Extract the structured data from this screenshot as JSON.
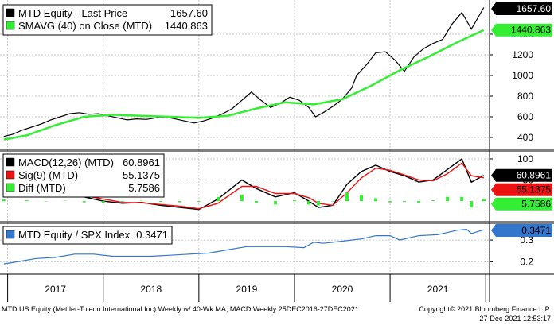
{
  "chart_data": [
    {
      "type": "line",
      "panel": "price",
      "ylim": [
        300,
        1700
      ],
      "yticks": [
        400,
        600,
        800,
        1000,
        1200,
        1400
      ],
      "series": [
        {
          "name": "MTD Equity - Last Price",
          "last": "1657.60",
          "color": "#000000",
          "x": [
            2016.96,
            2017.05,
            2017.15,
            2017.25,
            2017.35,
            2017.45,
            2017.55,
            2017.65,
            2017.75,
            2017.85,
            2017.95,
            2018.05,
            2018.15,
            2018.25,
            2018.35,
            2018.45,
            2018.55,
            2018.65,
            2018.75,
            2018.85,
            2018.95,
            2019.05,
            2019.15,
            2019.25,
            2019.35,
            2019.45,
            2019.55,
            2019.65,
            2019.75,
            2019.85,
            2019.95,
            2020.05,
            2020.15,
            2020.22,
            2020.3,
            2020.4,
            2020.5,
            2020.6,
            2020.65,
            2020.75,
            2020.85,
            2020.95,
            2021.05,
            2021.15,
            2021.25,
            2021.35,
            2021.45,
            2021.55,
            2021.65,
            2021.75,
            2021.85,
            2021.98
          ],
          "y": [
            410,
            430,
            470,
            500,
            530,
            570,
            600,
            630,
            640,
            625,
            630,
            610,
            590,
            570,
            580,
            575,
            590,
            600,
            580,
            560,
            540,
            560,
            590,
            630,
            680,
            760,
            840,
            760,
            690,
            730,
            790,
            760,
            690,
            600,
            640,
            700,
            770,
            880,
            1000,
            1100,
            1220,
            1230,
            1150,
            1040,
            1180,
            1260,
            1310,
            1350,
            1500,
            1610,
            1450,
            1657.6
          ]
        },
        {
          "name": "SMAVG (40)  on Close (MTD)",
          "last": "1440.863",
          "color": "#33ee33",
          "x": [
            2016.96,
            2017.2,
            2017.5,
            2017.8,
            2018.1,
            2018.4,
            2018.7,
            2019.0,
            2019.3,
            2019.6,
            2019.9,
            2020.2,
            2020.5,
            2020.8,
            2021.1,
            2021.4,
            2021.7,
            2021.98
          ],
          "y": [
            380,
            420,
            520,
            600,
            620,
            610,
            600,
            590,
            610,
            680,
            740,
            720,
            770,
            900,
            1050,
            1180,
            1320,
            1440.863
          ]
        }
      ]
    },
    {
      "type": "line",
      "panel": "macd",
      "ylim": [
        -45,
        115
      ],
      "yticks": [
        100,
        50
      ],
      "series": [
        {
          "name": "MACD(12,26) (MTD)",
          "last": "60.8961",
          "color": "#000000",
          "x": [
            2016.96,
            2017.2,
            2017.4,
            2017.6,
            2017.8,
            2018.0,
            2018.2,
            2018.4,
            2018.6,
            2018.8,
            2019.0,
            2019.2,
            2019.45,
            2019.6,
            2019.8,
            2020.0,
            2020.15,
            2020.25,
            2020.4,
            2020.55,
            2020.7,
            2020.85,
            2021.0,
            2021.15,
            2021.3,
            2021.45,
            2021.6,
            2021.75,
            2021.85,
            2021.98
          ],
          "y": [
            15,
            22,
            18,
            20,
            10,
            0,
            -5,
            -3,
            -10,
            -15,
            -20,
            5,
            50,
            30,
            10,
            20,
            0,
            -15,
            -10,
            40,
            70,
            85,
            70,
            60,
            45,
            50,
            75,
            100,
            45,
            60.8961
          ]
        },
        {
          "name": "Sig(9) (MTD)",
          "last": "55.1375",
          "color": "#ee1111",
          "x": [
            2016.96,
            2017.2,
            2017.4,
            2017.6,
            2017.8,
            2018.0,
            2018.2,
            2018.4,
            2018.6,
            2018.8,
            2019.0,
            2019.2,
            2019.45,
            2019.6,
            2019.8,
            2020.0,
            2020.15,
            2020.25,
            2020.4,
            2020.55,
            2020.7,
            2020.85,
            2021.0,
            2021.15,
            2021.3,
            2021.45,
            2021.6,
            2021.75,
            2021.85,
            2021.98
          ],
          "y": [
            10,
            20,
            18,
            19,
            13,
            5,
            -3,
            -4,
            -8,
            -12,
            -18,
            -5,
            35,
            35,
            18,
            18,
            8,
            -5,
            -10,
            20,
            55,
            78,
            73,
            62,
            50,
            48,
            65,
            90,
            60,
            55.1375
          ]
        },
        {
          "name": "Diff (MTD)",
          "last": "5.7586",
          "color": "#33ee33",
          "style": "histogram",
          "x": [
            2016.96,
            2017.2,
            2017.4,
            2017.6,
            2017.8,
            2018.0,
            2018.2,
            2018.4,
            2018.6,
            2018.8,
            2019.0,
            2019.2,
            2019.45,
            2019.6,
            2019.8,
            2020.0,
            2020.15,
            2020.25,
            2020.4,
            2020.55,
            2020.7,
            2020.85,
            2021.0,
            2021.15,
            2021.3,
            2021.45,
            2021.6,
            2021.75,
            2021.85,
            2021.98
          ],
          "y": [
            5,
            2,
            0,
            1,
            -3,
            -5,
            -2,
            1,
            -2,
            -3,
            -2,
            10,
            15,
            -5,
            -8,
            2,
            -8,
            -10,
            0,
            20,
            15,
            7,
            -3,
            -2,
            -5,
            2,
            10,
            10,
            -15,
            5.7586
          ]
        }
      ]
    },
    {
      "type": "line",
      "panel": "ratio",
      "ylim": [
        0.15,
        0.37
      ],
      "yticks": [
        0.3,
        0.2
      ],
      "series": [
        {
          "name": "MTD Equity / SPX Index",
          "last": "0.3471",
          "color": "#3377cc",
          "x": [
            2016.96,
            2017.1,
            2017.3,
            2017.5,
            2017.7,
            2017.9,
            2018.1,
            2018.3,
            2018.5,
            2018.7,
            2018.9,
            2019.1,
            2019.3,
            2019.5,
            2019.7,
            2019.9,
            2020.1,
            2020.2,
            2020.3,
            2020.5,
            2020.7,
            2020.85,
            2021.0,
            2021.1,
            2021.3,
            2021.5,
            2021.7,
            2021.8,
            2021.85,
            2021.98
          ],
          "y": [
            0.19,
            0.2,
            0.215,
            0.22,
            0.235,
            0.235,
            0.225,
            0.225,
            0.225,
            0.23,
            0.235,
            0.24,
            0.255,
            0.27,
            0.27,
            0.27,
            0.265,
            0.29,
            0.285,
            0.295,
            0.305,
            0.32,
            0.32,
            0.3,
            0.32,
            0.325,
            0.345,
            0.35,
            0.33,
            0.3471
          ]
        }
      ]
    }
  ],
  "x_axis": {
    "years": [
      "2017",
      "2018",
      "2019",
      "2020",
      "2021"
    ]
  },
  "footer": {
    "left": "MTD US Equity (Mettler-Toledo International Inc) Weekly w/ 40-Wk MA, MACD  Weekly 25DEC2016-27DEC2021",
    "right1": "Copyright© 2021 Bloomberg Finance L.P.",
    "right2": "27-Dec-2021 12:53:17"
  },
  "colors": {
    "price_line": "#000000",
    "sma": "#33ee33",
    "sig": "#ee1111",
    "ratio": "#3377cc",
    "badge_blue": "#3377cc",
    "badge_green": "#33ee33"
  }
}
